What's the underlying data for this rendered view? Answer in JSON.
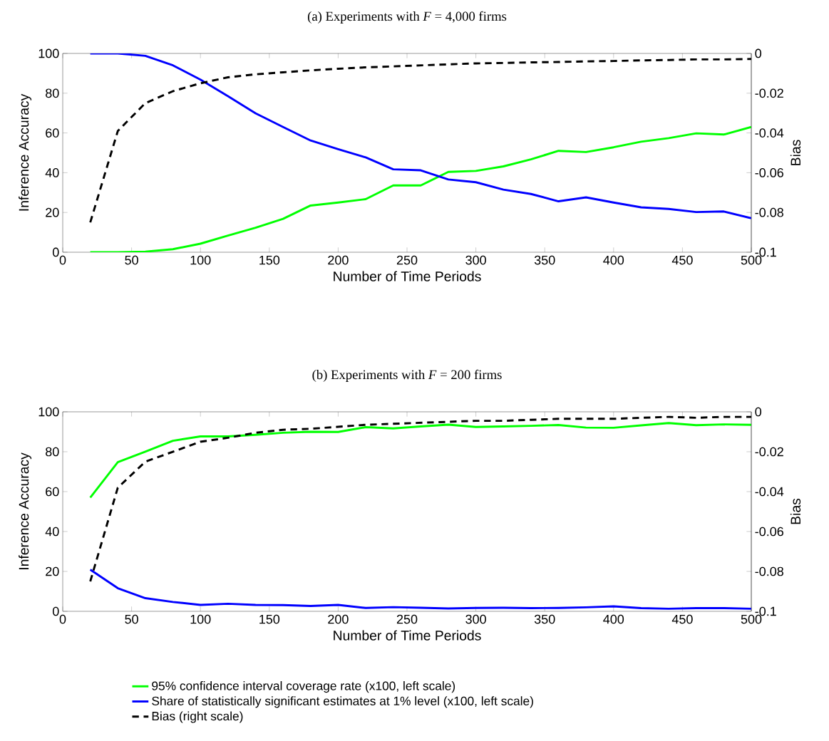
{
  "chart_data": [
    {
      "type": "line",
      "title": "(a) Experiments with *F* = 4,000 firms",
      "xlabel": "Number of Time Periods",
      "ylabel": "Inference Accuracy",
      "y2label": "Bias",
      "x": [
        20,
        40,
        60,
        80,
        100,
        120,
        140,
        160,
        180,
        200,
        220,
        240,
        260,
        280,
        300,
        320,
        340,
        360,
        380,
        400,
        420,
        440,
        460,
        480,
        500
      ],
      "xlim": [
        0,
        500
      ],
      "xticks": [
        0,
        50,
        100,
        150,
        200,
        250,
        300,
        350,
        400,
        450,
        500
      ],
      "ylim": [
        0,
        100
      ],
      "yticks": [
        0,
        20,
        40,
        60,
        80,
        100
      ],
      "y2lim": [
        -0.1,
        0
      ],
      "y2ticks": [
        -0.1,
        -0.08,
        -0.06,
        -0.04,
        -0.02,
        0
      ],
      "series": [
        {
          "color": "#00ff00",
          "line_style": "solid",
          "values": [
            0,
            0,
            0.3,
            1.5,
            4.3,
            8.4,
            12.3,
            16.8,
            23.5,
            25,
            26.7,
            33.6,
            33.6,
            40.4,
            40.9,
            43.2,
            46.7,
            51,
            50.4,
            52.8,
            55.6,
            57.4,
            59.8,
            59.2,
            63
          ]
        },
        {
          "color": "#0000ff",
          "line_style": "solid",
          "values": [
            100,
            100,
            98.8,
            94,
            86.8,
            78.5,
            69.9,
            63,
            56.2,
            51.8,
            47.7,
            41.7,
            41.2,
            36.6,
            35.2,
            31.5,
            29.3,
            25.6,
            27.6,
            25,
            22.6,
            21.8,
            20.2,
            20.5,
            17.1
          ]
        },
        {
          "color": "#000000",
          "line_style": "dashed",
          "axis": "y2",
          "values": [
            -0.085,
            -0.039,
            -0.025,
            -0.019,
            -0.015,
            -0.012,
            -0.0105,
            -0.0095,
            -0.0085,
            -0.0077,
            -0.007,
            -0.0065,
            -0.006,
            -0.0055,
            -0.005,
            -0.0048,
            -0.0045,
            -0.0043,
            -0.004,
            -0.0038,
            -0.0035,
            -0.0033,
            -0.003,
            -0.003,
            -0.0028
          ]
        }
      ]
    },
    {
      "type": "line",
      "title": "(b) Experiments with *F* = 200 firms",
      "xlabel": "Number of Time Periods",
      "ylabel": "Inference Accuracy",
      "y2label": "Bias",
      "legend": "bottom",
      "x": [
        20,
        40,
        60,
        80,
        100,
        120,
        140,
        160,
        180,
        200,
        220,
        240,
        260,
        280,
        300,
        320,
        340,
        360,
        380,
        400,
        420,
        440,
        460,
        480,
        500
      ],
      "xlim": [
        0,
        500
      ],
      "xticks": [
        0,
        50,
        100,
        150,
        200,
        250,
        300,
        350,
        400,
        450,
        500
      ],
      "ylim": [
        0,
        100
      ],
      "yticks": [
        0,
        20,
        40,
        60,
        80,
        100
      ],
      "y2lim": [
        -0.1,
        0
      ],
      "y2ticks": [
        -0.1,
        -0.08,
        -0.06,
        -0.04,
        -0.02,
        0
      ],
      "series": [
        {
          "name": "95% confidence interval coverage rate (x100, left scale)",
          "color": "#00ff00",
          "line_style": "solid",
          "values": [
            57,
            74.8,
            80,
            85.5,
            87.7,
            87.7,
            88.5,
            89.5,
            90,
            89.9,
            92.3,
            91.7,
            92.7,
            93.6,
            92.4,
            92.7,
            93,
            93.4,
            92.1,
            92,
            93.2,
            94.4,
            93.3,
            93.7,
            93.5
          ]
        },
        {
          "name": "Share of statistically significant estimates at 1% level (x100, left scale)",
          "color": "#0000ff",
          "line_style": "solid",
          "values": [
            20.9,
            11.6,
            6.6,
            4.7,
            3.2,
            3.8,
            3.2,
            3.1,
            2.7,
            3.2,
            1.7,
            2.1,
            1.8,
            1.4,
            1.7,
            1.8,
            1.6,
            1.7,
            2,
            2.5,
            1.6,
            1.3,
            1.6,
            1.6,
            1.3
          ]
        },
        {
          "name": "Bias (right scale)",
          "color": "#000000",
          "line_style": "dashed",
          "axis": "y2",
          "values": [
            -0.085,
            -0.038,
            -0.025,
            -0.02,
            -0.015,
            -0.013,
            -0.0105,
            -0.009,
            -0.0085,
            -0.0075,
            -0.0065,
            -0.006,
            -0.0055,
            -0.005,
            -0.0045,
            -0.0045,
            -0.004,
            -0.0035,
            -0.0035,
            -0.0035,
            -0.003,
            -0.0025,
            -0.003,
            -0.0025,
            -0.0025
          ]
        }
      ]
    }
  ]
}
